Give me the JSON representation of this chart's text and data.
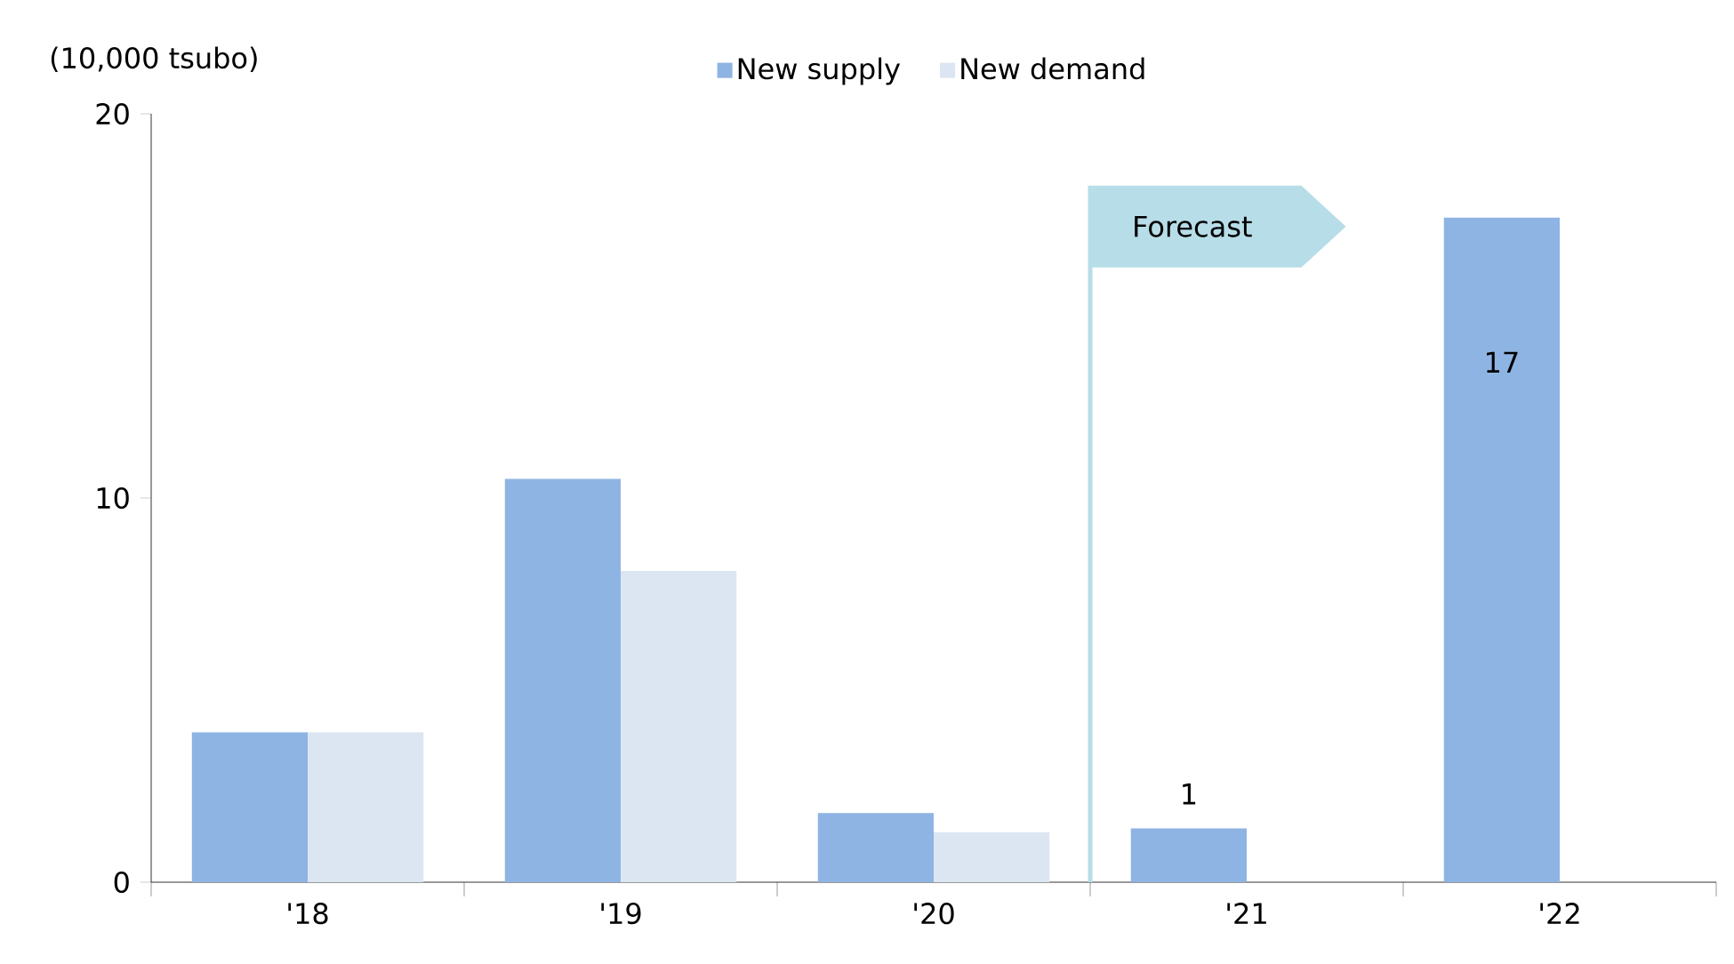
{
  "chart_data": {
    "type": "bar",
    "ylabel": "(10,000 tsubo)",
    "categories": [
      "'18",
      "'19",
      "'20",
      "'21",
      "'22"
    ],
    "series": [
      {
        "name": "New supply",
        "color": "#8eb4e3",
        "values": [
          3.9,
          10.5,
          1.8,
          1.4,
          17.3
        ],
        "value_labels": [
          null,
          null,
          null,
          "1",
          "17"
        ]
      },
      {
        "name": "New demand",
        "color": "#dce6f2",
        "values": [
          3.9,
          8.1,
          1.3,
          null,
          null
        ]
      }
    ],
    "ylim": [
      0,
      20
    ],
    "yticks": [
      0,
      10,
      20
    ],
    "grid": false,
    "legend": "top",
    "annotations": [
      "Forecast"
    ]
  }
}
